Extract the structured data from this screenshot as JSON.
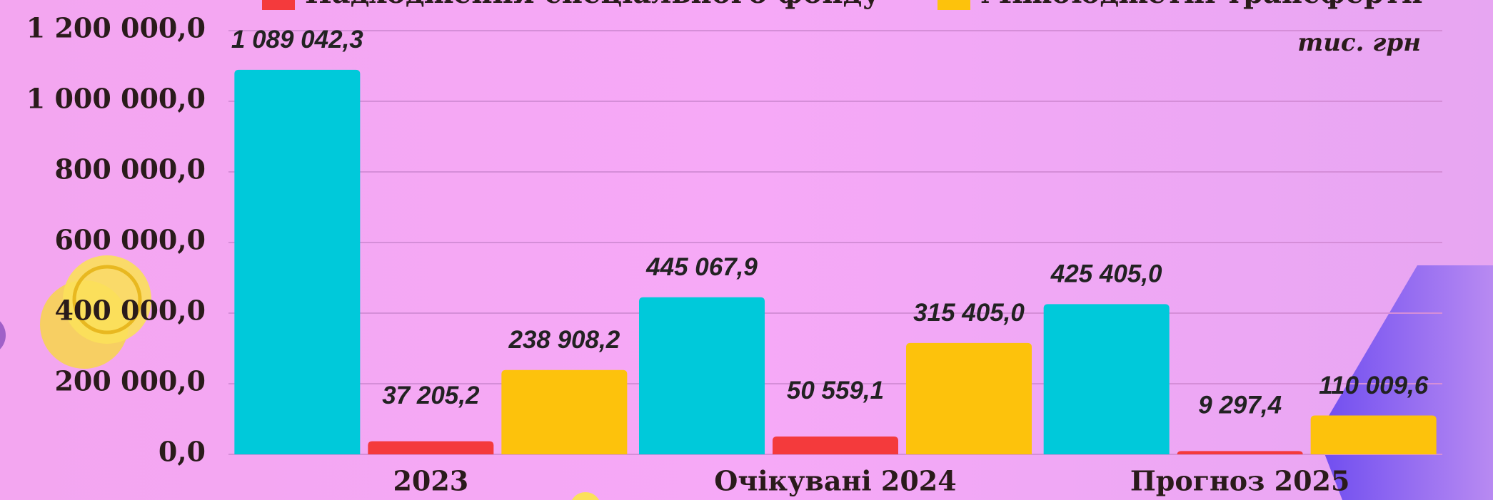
{
  "chart_data": {
    "type": "bar",
    "unit_note": "тис. грн",
    "categories": [
      "2023",
      "Очікувані 2024",
      "Прогноз 2025"
    ],
    "series": [
      {
        "color": "#00c9da",
        "values": [
          1089042.3,
          445067.9,
          425405.0
        ],
        "value_labels": [
          "1 089 042,3",
          "445 067,9",
          "425 405,0"
        ]
      },
      {
        "name": "Надходження спеціального фонду",
        "color": "#f43a3c",
        "values": [
          37205.2,
          50559.1,
          9297.4
        ],
        "value_labels": [
          "37 205,2",
          "50 559,1",
          "9 297,4"
        ]
      },
      {
        "name": "Міжбюджетні трансферти",
        "color": "#fdc20c",
        "values": [
          238908.2,
          315405.0,
          110009.6
        ],
        "value_labels": [
          "238 908,2",
          "315 405,0",
          "110 009,6"
        ]
      }
    ],
    "ylim": [
      0,
      1200000
    ],
    "yticks": [
      {
        "value": 0,
        "label": "0,0"
      },
      {
        "value": 200000,
        "label": "200 000,0"
      },
      {
        "value": 400000,
        "label": "400 000,0"
      },
      {
        "value": 600000,
        "label": "600 000,0"
      },
      {
        "value": 800000,
        "label": "800 000,0"
      },
      {
        "value": 1000000,
        "label": "1 000 000,0"
      },
      {
        "value": 1200000,
        "label": "1 200 000,0"
      }
    ],
    "grid": true
  }
}
